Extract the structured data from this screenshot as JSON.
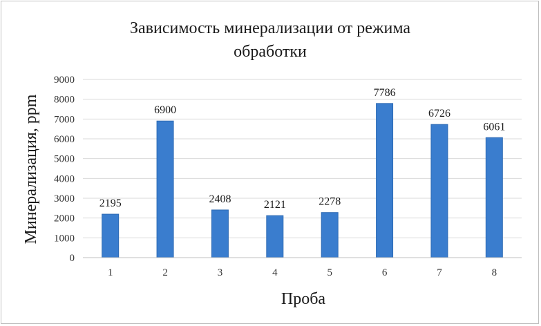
{
  "chart_data": {
    "type": "bar",
    "title_lines": [
      "Зависимость минерализации от режима",
      "обработки"
    ],
    "xlabel": "Проба",
    "ylabel": "Минерализация, ppm",
    "categories": [
      "1",
      "2",
      "3",
      "4",
      "5",
      "6",
      "7",
      "8"
    ],
    "values": [
      2195,
      6900,
      2408,
      2121,
      2278,
      7786,
      6726,
      6061
    ],
    "data_labels": [
      "2195",
      "6900",
      "2408",
      "2121",
      "2278",
      "7786",
      "6726",
      "6061"
    ],
    "ylim": [
      0,
      9000
    ],
    "yticks": [
      "0",
      "1000",
      "2000",
      "3000",
      "4000",
      "5000",
      "6000",
      "7000",
      "8000",
      "9000"
    ],
    "ytick_values": [
      0,
      1000,
      2000,
      3000,
      4000,
      5000,
      6000,
      7000,
      8000,
      9000
    ],
    "grid": true,
    "legend": "none",
    "colors": {
      "bar": "#3a7dce",
      "bar_edge": "#2e6ab3",
      "grid": "#d9d9d9",
      "axis": "#bfbfbf"
    }
  }
}
